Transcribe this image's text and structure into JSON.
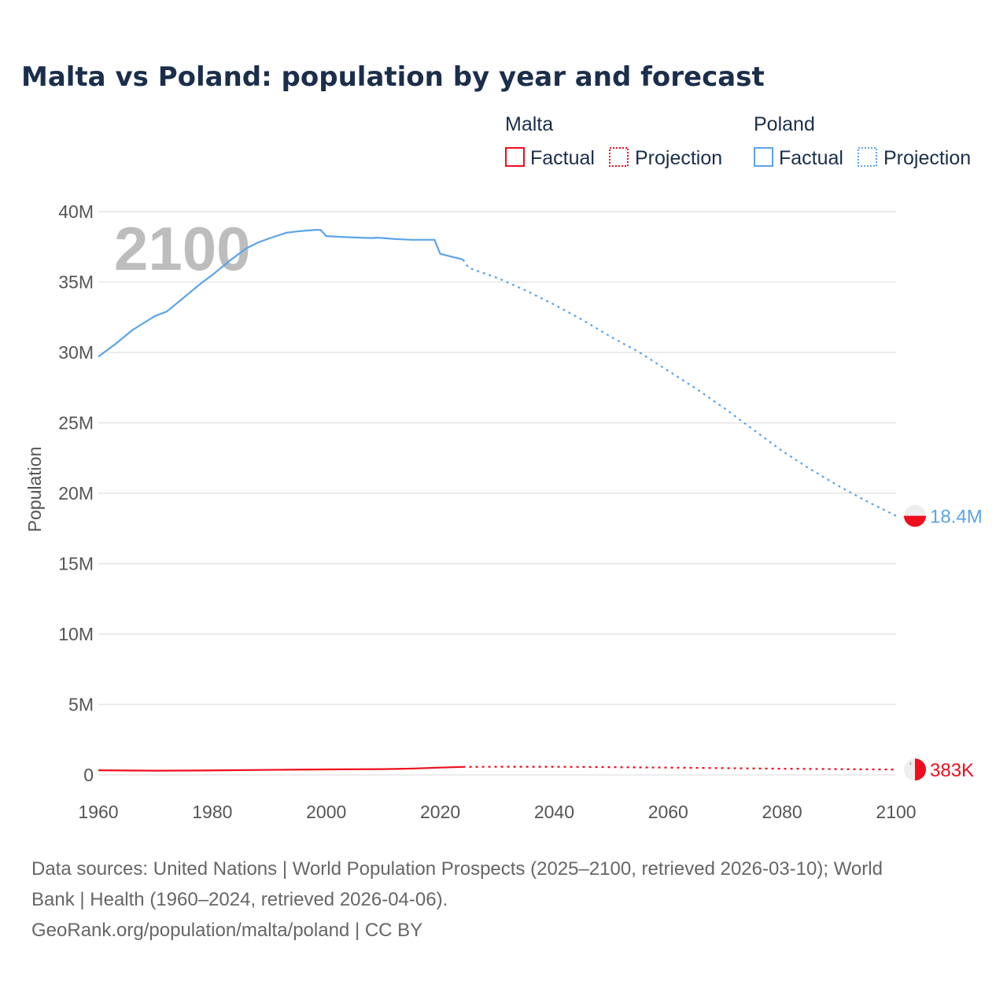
{
  "chart_data": {
    "type": "line",
    "title": "Malta vs Poland: population by year and forecast",
    "xlabel": "",
    "ylabel": "Population",
    "xlim": [
      1960,
      2100
    ],
    "ylim": [
      0,
      40000000
    ],
    "x_ticks": [
      "1960",
      "1980",
      "2000",
      "2020",
      "2040",
      "2060",
      "2080",
      "2100"
    ],
    "y_ticks": [
      {
        "v": 0,
        "label": "0"
      },
      {
        "v": 5000000,
        "label": "5M"
      },
      {
        "v": 10000000,
        "label": "10M"
      },
      {
        "v": 15000000,
        "label": "15M"
      },
      {
        "v": 20000000,
        "label": "20M"
      },
      {
        "v": 25000000,
        "label": "25M"
      },
      {
        "v": 30000000,
        "label": "30M"
      },
      {
        "v": 35000000,
        "label": "35M"
      },
      {
        "v": 40000000,
        "label": "40M"
      }
    ],
    "grid": true,
    "year_watermark": "2100",
    "legend": {
      "placement": "top-right",
      "groups": [
        {
          "name": "Malta",
          "items": [
            "Factual",
            "Projection"
          ]
        },
        {
          "name": "Poland",
          "items": [
            "Factual",
            "Projection"
          ]
        }
      ]
    },
    "series": [
      {
        "name": "Poland",
        "color": "#5ba4e8",
        "end_label": "18.4M",
        "factual": [
          [
            1960,
            29.7
          ],
          [
            1963,
            30.6
          ],
          [
            1966,
            31.6
          ],
          [
            1970,
            32.6
          ],
          [
            1972,
            32.9
          ],
          [
            1975,
            33.9
          ],
          [
            1978,
            34.9
          ],
          [
            1980,
            35.5
          ],
          [
            1983,
            36.5
          ],
          [
            1986,
            37.4
          ],
          [
            1988,
            37.8
          ],
          [
            1990,
            38.1
          ],
          [
            1993,
            38.5
          ],
          [
            1995,
            38.6
          ],
          [
            1998,
            38.7
          ],
          [
            1999,
            38.7
          ],
          [
            2000,
            38.26
          ],
          [
            2003,
            38.2
          ],
          [
            2006,
            38.15
          ],
          [
            2008,
            38.12
          ],
          [
            2009,
            38.15
          ],
          [
            2012,
            38.06
          ],
          [
            2015,
            38.0
          ],
          [
            2019,
            38.0
          ],
          [
            2020,
            37.0
          ],
          [
            2022,
            36.8
          ],
          [
            2024,
            36.6
          ]
        ],
        "projection": [
          [
            2024,
            36.6
          ],
          [
            2025,
            36.0
          ],
          [
            2030,
            35.3
          ],
          [
            2035,
            34.4
          ],
          [
            2040,
            33.4
          ],
          [
            2045,
            32.3
          ],
          [
            2050,
            31.1
          ],
          [
            2055,
            30.0
          ],
          [
            2060,
            28.7
          ],
          [
            2065,
            27.4
          ],
          [
            2070,
            26.0
          ],
          [
            2075,
            24.5
          ],
          [
            2080,
            23.0
          ],
          [
            2085,
            21.7
          ],
          [
            2090,
            20.5
          ],
          [
            2095,
            19.4
          ],
          [
            2100,
            18.4
          ]
        ]
      },
      {
        "name": "Malta",
        "color": "#f00d1c",
        "end_label": "383K",
        "factual": [
          [
            1960,
            0.33
          ],
          [
            1970,
            0.3
          ],
          [
            1980,
            0.32
          ],
          [
            1990,
            0.36
          ],
          [
            2000,
            0.39
          ],
          [
            2010,
            0.41
          ],
          [
            2015,
            0.45
          ],
          [
            2020,
            0.52
          ],
          [
            2024,
            0.57
          ]
        ],
        "projection": [
          [
            2024,
            0.57
          ],
          [
            2030,
            0.58
          ],
          [
            2040,
            0.58
          ],
          [
            2050,
            0.55
          ],
          [
            2060,
            0.52
          ],
          [
            2070,
            0.48
          ],
          [
            2080,
            0.44
          ],
          [
            2090,
            0.41
          ],
          [
            2100,
            0.383
          ]
        ]
      }
    ]
  },
  "footer": {
    "line1": "Data sources: United Nations | World Population Prospects (2025–2100, retrieved 2026-03-10); World",
    "line2": "Bank | Health (1960–2024, retrieved 2026-04-06).",
    "line3": "GeoRank.org/population/malta/poland | CC BY"
  }
}
